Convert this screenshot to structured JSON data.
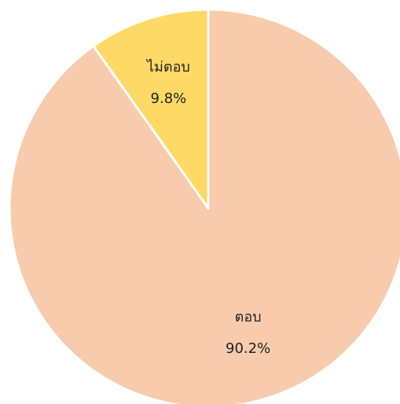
{
  "chart_data": {
    "type": "pie",
    "categories": [
      "ตอบ",
      "ไม่ตอบ"
    ],
    "values": [
      90.2,
      9.8
    ],
    "value_labels": [
      "90.2%",
      "9.8%"
    ],
    "colors": [
      "#f8cbad",
      "#ffd966"
    ]
  }
}
